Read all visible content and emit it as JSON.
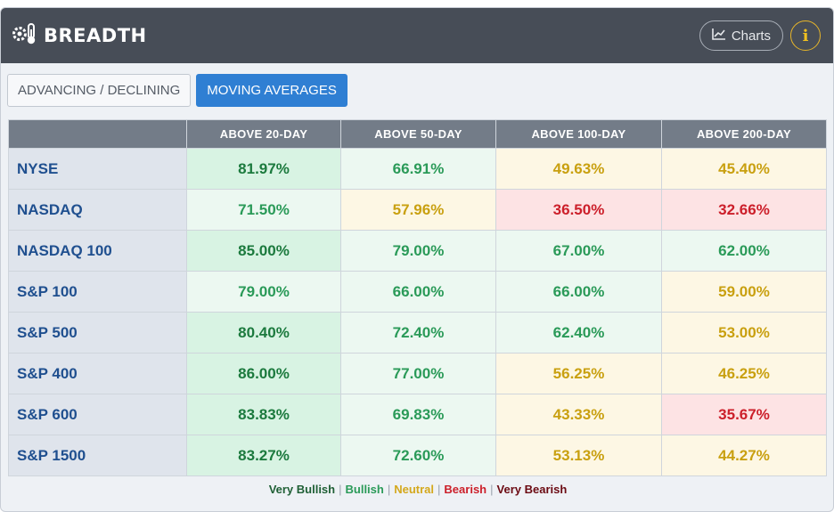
{
  "header": {
    "title": "BREADTH",
    "charts_label": "Charts",
    "info_label": "i"
  },
  "tabs": [
    {
      "label": "ADVANCING / DECLINING",
      "active": false
    },
    {
      "label": "MOVING AVERAGES",
      "active": true
    }
  ],
  "table": {
    "columns": [
      "",
      "ABOVE 20-DAY",
      "ABOVE 50-DAY",
      "ABOVE 100-DAY",
      "ABOVE 200-DAY"
    ],
    "rows": [
      {
        "label": "NYSE",
        "cells": [
          {
            "value": "81.97%",
            "status": "vb"
          },
          {
            "value": "66.91%",
            "status": "b"
          },
          {
            "value": "49.63%",
            "status": "n"
          },
          {
            "value": "45.40%",
            "status": "n"
          }
        ]
      },
      {
        "label": "NASDAQ",
        "cells": [
          {
            "value": "71.50%",
            "status": "b"
          },
          {
            "value": "57.96%",
            "status": "n"
          },
          {
            "value": "36.50%",
            "status": "br"
          },
          {
            "value": "32.66%",
            "status": "br"
          }
        ]
      },
      {
        "label": "NASDAQ 100",
        "cells": [
          {
            "value": "85.00%",
            "status": "vb"
          },
          {
            "value": "79.00%",
            "status": "b"
          },
          {
            "value": "67.00%",
            "status": "b"
          },
          {
            "value": "62.00%",
            "status": "b"
          }
        ]
      },
      {
        "label": "S&P 100",
        "cells": [
          {
            "value": "79.00%",
            "status": "b"
          },
          {
            "value": "66.00%",
            "status": "b"
          },
          {
            "value": "66.00%",
            "status": "b"
          },
          {
            "value": "59.00%",
            "status": "n"
          }
        ]
      },
      {
        "label": "S&P 500",
        "cells": [
          {
            "value": "80.40%",
            "status": "vb"
          },
          {
            "value": "72.40%",
            "status": "b"
          },
          {
            "value": "62.40%",
            "status": "b"
          },
          {
            "value": "53.00%",
            "status": "n"
          }
        ]
      },
      {
        "label": "S&P 400",
        "cells": [
          {
            "value": "86.00%",
            "status": "vb"
          },
          {
            "value": "77.00%",
            "status": "b"
          },
          {
            "value": "56.25%",
            "status": "n"
          },
          {
            "value": "46.25%",
            "status": "n"
          }
        ]
      },
      {
        "label": "S&P 600",
        "cells": [
          {
            "value": "83.83%",
            "status": "vb"
          },
          {
            "value": "69.83%",
            "status": "b"
          },
          {
            "value": "43.33%",
            "status": "n"
          },
          {
            "value": "35.67%",
            "status": "br"
          }
        ]
      },
      {
        "label": "S&P 1500",
        "cells": [
          {
            "value": "83.27%",
            "status": "vb"
          },
          {
            "value": "72.60%",
            "status": "b"
          },
          {
            "value": "53.13%",
            "status": "n"
          },
          {
            "value": "44.27%",
            "status": "n"
          }
        ]
      }
    ]
  },
  "legend": [
    {
      "label": "Very Bullish",
      "status": "vb"
    },
    {
      "label": "Bullish",
      "status": "b"
    },
    {
      "label": "Neutral",
      "status": "n"
    },
    {
      "label": "Bearish",
      "status": "br"
    },
    {
      "label": "Very Bearish",
      "status": "vbr"
    }
  ],
  "colors": {
    "header_bg": "#474d57",
    "tab_active": "#2f7fd3",
    "very_bullish_bg": "#d8f3e3",
    "bullish_bg": "#ecf8f1",
    "neutral_bg": "#fdf7e4",
    "bearish_bg": "#fde3e4"
  },
  "icons": {
    "logo": "gauge-thermometer-icon",
    "charts": "line-chart-icon",
    "info": "info-icon"
  }
}
